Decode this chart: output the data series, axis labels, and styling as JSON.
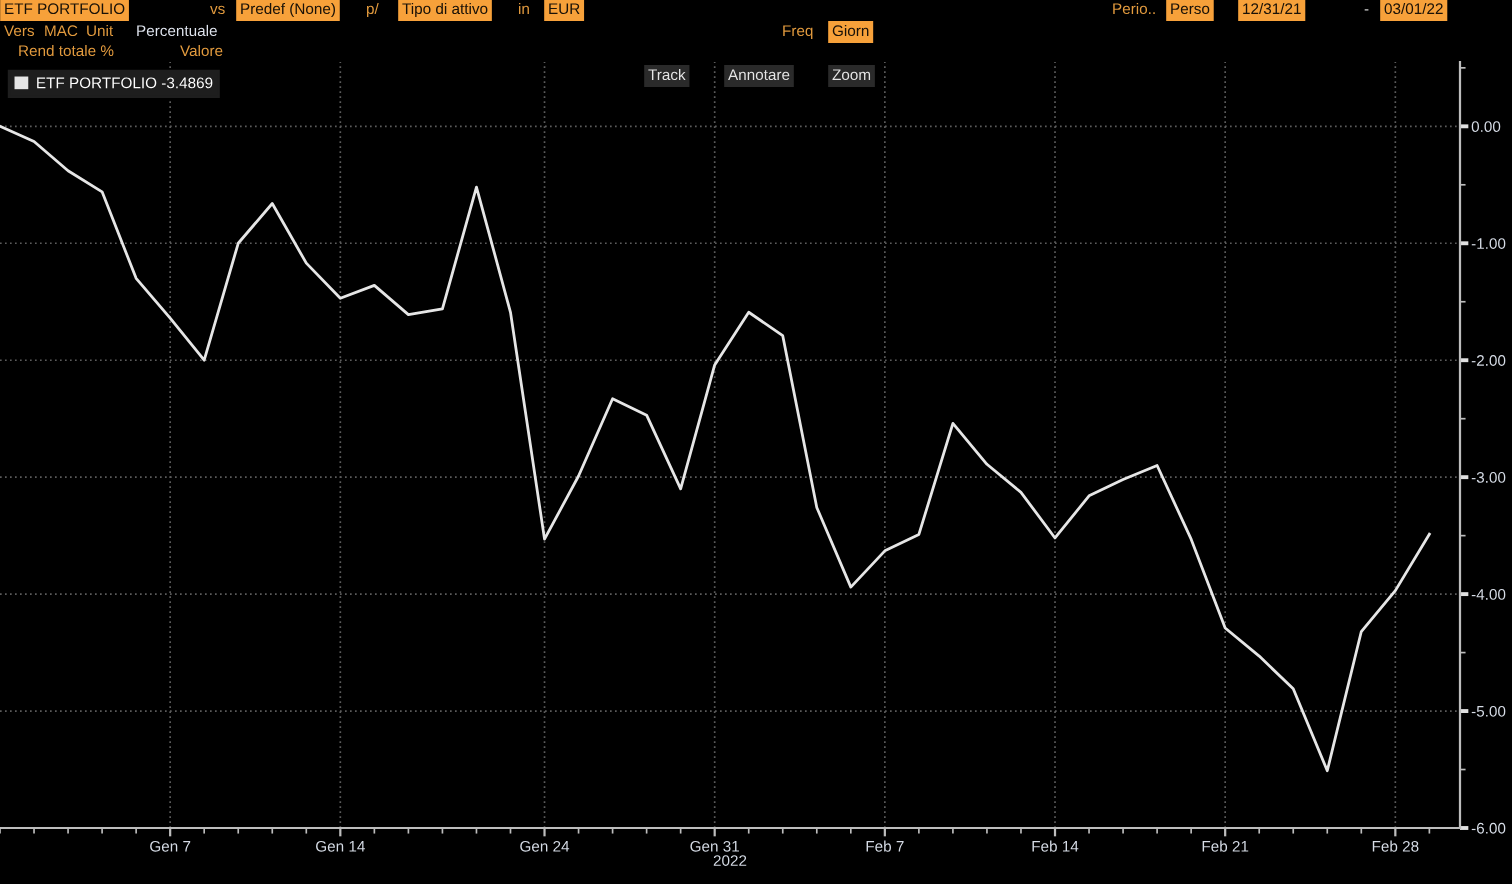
{
  "chart_data": {
    "type": "line",
    "categories": [
      null,
      null,
      null,
      null,
      null,
      "Gen 7",
      null,
      null,
      null,
      null,
      "Gen 14",
      null,
      null,
      null,
      null,
      null,
      "Gen 24",
      null,
      null,
      null,
      null,
      "Gen 31",
      null,
      null,
      null,
      null,
      "Feb 7",
      null,
      null,
      null,
      null,
      "Feb 14",
      null,
      null,
      null,
      null,
      "Feb 21",
      null,
      null,
      null,
      null,
      "Feb 28",
      null
    ],
    "series": [
      {
        "name": "ETF PORTFOLIO -3.4869",
        "color": "#e6e6e6",
        "values": [
          0.0,
          -0.13,
          -0.38,
          -0.56,
          -1.3,
          -1.64,
          -2.0,
          -1.0,
          -0.66,
          -1.17,
          -1.47,
          -1.36,
          -1.61,
          -1.56,
          -0.52,
          -1.59,
          -3.53,
          -2.99,
          -2.33,
          -2.47,
          -3.1,
          -2.04,
          -1.59,
          -1.79,
          -3.26,
          -3.94,
          -3.63,
          -3.49,
          -2.54,
          -2.89,
          -3.13,
          -3.52,
          -3.16,
          -3.02,
          -2.9,
          -3.53,
          -4.29,
          -4.53,
          -4.81,
          -5.51,
          -4.32,
          -3.97,
          -3.4869
        ]
      }
    ],
    "xlabel": "2022",
    "ylim": [
      -6,
      0.55
    ],
    "yticks": [
      {
        "value": 0.5,
        "label": null
      },
      {
        "value": 0,
        "label": "0.00"
      },
      {
        "value": -0.5,
        "label": null
      },
      {
        "value": -1,
        "label": "-1.00"
      },
      {
        "value": -1.5,
        "label": null
      },
      {
        "value": -2,
        "label": "-2.00"
      },
      {
        "value": -2.5,
        "label": null
      },
      {
        "value": -3,
        "label": "-3.00"
      },
      {
        "value": -3.5,
        "label": null
      },
      {
        "value": -4,
        "label": "-4.00"
      },
      {
        "value": -4.5,
        "label": null
      },
      {
        "value": -5,
        "label": "-5.00"
      },
      {
        "value": -5.5,
        "label": null
      },
      {
        "value": -6,
        "label": "-6.00"
      }
    ],
    "grid": true,
    "legend": "top left",
    "annotations": [
      "ETF PORTFOLIO",
      "vs",
      "Predef (None)",
      "p/",
      "Tipo di attivo",
      "in",
      "EUR",
      "Perio..",
      "Perso",
      "12/31/21",
      "-",
      "03/01/22",
      "Vers",
      "MAC",
      "Unit",
      "Percentuale",
      "Freq",
      "Giorn",
      "Rend totale %",
      "Valore",
      "Track",
      "Annotare",
      "Zoom"
    ]
  }
}
